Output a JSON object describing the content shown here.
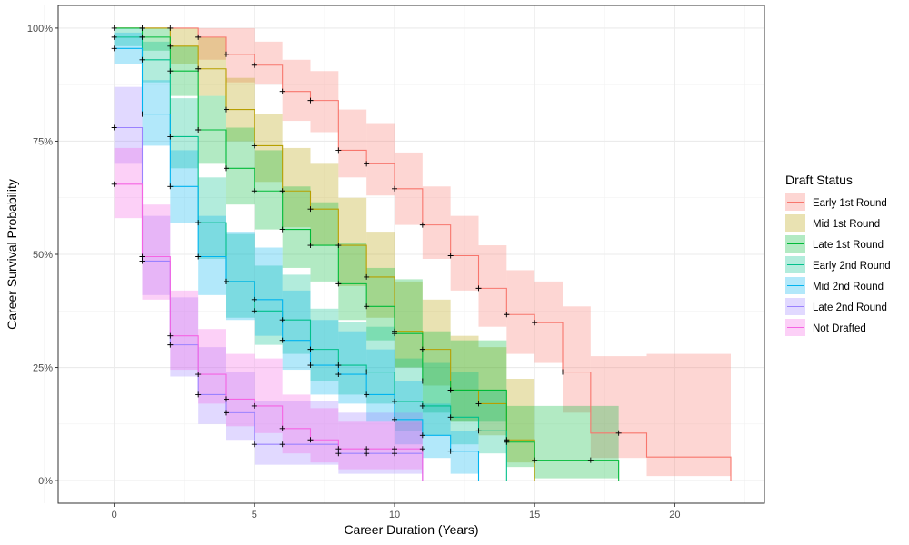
{
  "chart_data": {
    "type": "line",
    "subtype": "kaplan-meier step survival curves with confidence bands",
    "title": "",
    "xlabel": "Career Duration (Years)",
    "ylabel": "Career Survival Probability",
    "xlim": [
      -2,
      23.2
    ],
    "ylim": [
      -0.05,
      1.05
    ],
    "x_ticks": [
      0,
      5,
      10,
      15,
      20
    ],
    "x_tick_labels": [
      "0",
      "5",
      "10",
      "15",
      "20"
    ],
    "y_ticks": [
      0,
      0.25,
      0.5,
      0.75,
      1.0
    ],
    "y_tick_labels": [
      "0%",
      "25%",
      "50%",
      "75%",
      "100%"
    ],
    "grid": true,
    "legend": {
      "title": "Draft Status",
      "position": "right"
    },
    "series": [
      {
        "name": "Early 1st Round",
        "color": "#F8766D",
        "times": [
          0,
          3,
          4,
          5,
          6,
          7,
          8,
          9,
          10,
          11,
          12,
          13,
          14,
          15,
          16,
          17,
          19,
          22
        ],
        "surv": [
          1.0,
          0.98,
          0.942,
          0.918,
          0.86,
          0.84,
          0.73,
          0.7,
          0.645,
          0.565,
          0.497,
          0.425,
          0.367,
          0.349,
          0.24,
          0.105,
          0.052,
          0.0
        ],
        "lower": [
          1.0,
          0.93,
          0.88,
          0.875,
          0.795,
          0.77,
          0.67,
          0.63,
          0.565,
          0.49,
          0.42,
          0.34,
          0.28,
          0.26,
          0.15,
          0.05,
          0.01,
          0.01
        ],
        "upper": [
          1.0,
          1.0,
          1.0,
          0.97,
          0.93,
          0.905,
          0.82,
          0.79,
          0.725,
          0.65,
          0.585,
          0.52,
          0.465,
          0.44,
          0.385,
          0.275,
          0.28,
          0.28
        ],
        "censor_times": [
          0,
          1,
          2,
          3,
          4,
          5,
          6,
          7,
          8,
          9,
          10,
          11,
          12,
          13,
          14,
          15,
          16,
          18
        ],
        "censor_surv": [
          1.0,
          1.0,
          1.0,
          0.98,
          0.942,
          0.918,
          0.86,
          0.84,
          0.73,
          0.7,
          0.645,
          0.565,
          0.497,
          0.425,
          0.367,
          0.349,
          0.24,
          0.105
        ]
      },
      {
        "name": "Mid 1st Round",
        "color": "#B79F00",
        "times": [
          0,
          2,
          3,
          4,
          5,
          6,
          7,
          8,
          9,
          10,
          11,
          12,
          13,
          14,
          15
        ],
        "surv": [
          1.0,
          0.96,
          0.91,
          0.82,
          0.74,
          0.64,
          0.6,
          0.52,
          0.45,
          0.33,
          0.29,
          0.2,
          0.17,
          0.09,
          0.0
        ],
        "lower": [
          1.0,
          0.92,
          0.85,
          0.75,
          0.66,
          0.56,
          0.52,
          0.43,
          0.36,
          0.25,
          0.21,
          0.13,
          0.1,
          0.04,
          0.0
        ],
        "upper": [
          1.0,
          1.0,
          0.98,
          0.89,
          0.81,
          0.735,
          0.7,
          0.625,
          0.55,
          0.44,
          0.4,
          0.32,
          0.295,
          0.225,
          0.0
        ],
        "censor_times": [
          1,
          2,
          3,
          4,
          5,
          6,
          7,
          8,
          9,
          10,
          11,
          12,
          13,
          14
        ],
        "censor_surv": [
          1.0,
          0.96,
          0.91,
          0.82,
          0.74,
          0.64,
          0.6,
          0.52,
          0.45,
          0.33,
          0.29,
          0.2,
          0.17,
          0.09
        ]
      },
      {
        "name": "Late 1st Round",
        "color": "#00BA38",
        "times": [
          0,
          1,
          2,
          3,
          4,
          5,
          6,
          7,
          8,
          9,
          10,
          11,
          12,
          14,
          15,
          18
        ],
        "surv": [
          1.0,
          0.98,
          0.905,
          0.775,
          0.69,
          0.64,
          0.555,
          0.52,
          0.435,
          0.385,
          0.325,
          0.22,
          0.2,
          0.085,
          0.045,
          0.0
        ],
        "lower": [
          1.0,
          0.95,
          0.85,
          0.7,
          0.61,
          0.555,
          0.47,
          0.44,
          0.355,
          0.31,
          0.25,
          0.15,
          0.13,
          0.03,
          0.005,
          0.0
        ],
        "upper": [
          1.0,
          1.0,
          0.96,
          0.85,
          0.78,
          0.73,
          0.65,
          0.615,
          0.525,
          0.47,
          0.445,
          0.33,
          0.31,
          0.165,
          0.165,
          0.0
        ],
        "censor_times": [
          1,
          2,
          3,
          4,
          5,
          6,
          7,
          8,
          9,
          10,
          11,
          12,
          14,
          15,
          17
        ],
        "censor_surv": [
          0.98,
          0.905,
          0.775,
          0.69,
          0.64,
          0.555,
          0.52,
          0.435,
          0.385,
          0.325,
          0.22,
          0.2,
          0.085,
          0.045,
          0.045
        ]
      },
      {
        "name": "Early 2nd Round",
        "color": "#00C08B",
        "times": [
          0,
          1,
          2,
          3,
          4,
          5,
          6,
          7,
          8,
          9,
          10,
          11,
          12,
          13,
          14
        ],
        "surv": [
          0.98,
          0.93,
          0.76,
          0.57,
          0.44,
          0.375,
          0.355,
          0.29,
          0.255,
          0.24,
          0.175,
          0.165,
          0.14,
          0.11,
          0.0
        ],
        "lower": [
          0.96,
          0.88,
          0.69,
          0.49,
          0.36,
          0.3,
          0.28,
          0.22,
          0.19,
          0.17,
          0.11,
          0.1,
          0.08,
          0.06,
          0.0
        ],
        "upper": [
          1.0,
          0.97,
          0.845,
          0.67,
          0.545,
          0.475,
          0.455,
          0.38,
          0.35,
          0.34,
          0.27,
          0.26,
          0.24,
          0.2,
          0.0
        ],
        "censor_times": [
          0,
          1,
          2,
          3,
          4,
          5,
          6,
          7,
          8,
          9,
          10,
          11,
          12,
          13
        ],
        "censor_surv": [
          0.98,
          0.93,
          0.76,
          0.57,
          0.44,
          0.375,
          0.355,
          0.29,
          0.255,
          0.24,
          0.175,
          0.165,
          0.14,
          0.11
        ]
      },
      {
        "name": "Mid 2nd Round",
        "color": "#00B4F0",
        "times": [
          0,
          1,
          2,
          3,
          4,
          5,
          6,
          7,
          8,
          9,
          10,
          11,
          12,
          13
        ],
        "surv": [
          0.955,
          0.81,
          0.65,
          0.495,
          0.44,
          0.4,
          0.31,
          0.255,
          0.235,
          0.19,
          0.135,
          0.1,
          0.065,
          0.0
        ],
        "lower": [
          0.92,
          0.74,
          0.57,
          0.41,
          0.355,
          0.32,
          0.245,
          0.19,
          0.17,
          0.13,
          0.08,
          0.05,
          0.015,
          0.0
        ],
        "upper": [
          0.99,
          0.885,
          0.73,
          0.585,
          0.55,
          0.515,
          0.42,
          0.355,
          0.33,
          0.29,
          0.22,
          0.17,
          0.11,
          0.0
        ],
        "censor_times": [
          0,
          1,
          2,
          3,
          4,
          5,
          6,
          7,
          8,
          9,
          10,
          11,
          12
        ],
        "censor_surv": [
          0.955,
          0.81,
          0.65,
          0.495,
          0.44,
          0.4,
          0.31,
          0.255,
          0.235,
          0.19,
          0.135,
          0.1,
          0.065
        ]
      },
      {
        "name": "Late 2nd Round",
        "color": "#9A82FF",
        "times": [
          0,
          1,
          2,
          3,
          4,
          5,
          7,
          8,
          10,
          11
        ],
        "surv": [
          0.78,
          0.485,
          0.3,
          0.19,
          0.15,
          0.08,
          0.08,
          0.06,
          0.06,
          0.0
        ],
        "lower": [
          0.7,
          0.41,
          0.23,
          0.125,
          0.09,
          0.035,
          0.035,
          0.015,
          0.015,
          0.0
        ],
        "upper": [
          0.87,
          0.585,
          0.405,
          0.295,
          0.24,
          0.175,
          0.175,
          0.15,
          0.15,
          0.0
        ],
        "censor_times": [
          0,
          1,
          2,
          3,
          4,
          5,
          6,
          8,
          9,
          10
        ],
        "censor_surv": [
          0.78,
          0.485,
          0.3,
          0.19,
          0.15,
          0.08,
          0.08,
          0.06,
          0.06,
          0.06
        ]
      },
      {
        "name": "Not Drafted",
        "color": "#F564E3",
        "times": [
          0,
          1,
          2,
          3,
          4,
          5,
          6,
          7,
          8,
          11
        ],
        "surv": [
          0.655,
          0.495,
          0.32,
          0.235,
          0.18,
          0.165,
          0.115,
          0.09,
          0.07,
          0.0
        ],
        "lower": [
          0.58,
          0.4,
          0.245,
          0.17,
          0.12,
          0.105,
          0.06,
          0.04,
          0.025,
          0.0
        ],
        "upper": [
          0.735,
          0.61,
          0.42,
          0.335,
          0.28,
          0.27,
          0.19,
          0.16,
          0.13,
          0.0
        ],
        "censor_times": [
          0,
          1,
          2,
          3,
          4,
          5,
          6,
          7,
          8,
          9,
          10,
          11
        ],
        "censor_surv": [
          0.655,
          0.495,
          0.32,
          0.235,
          0.18,
          0.165,
          0.115,
          0.09,
          0.07,
          0.07,
          0.07,
          0.07
        ]
      }
    ]
  }
}
